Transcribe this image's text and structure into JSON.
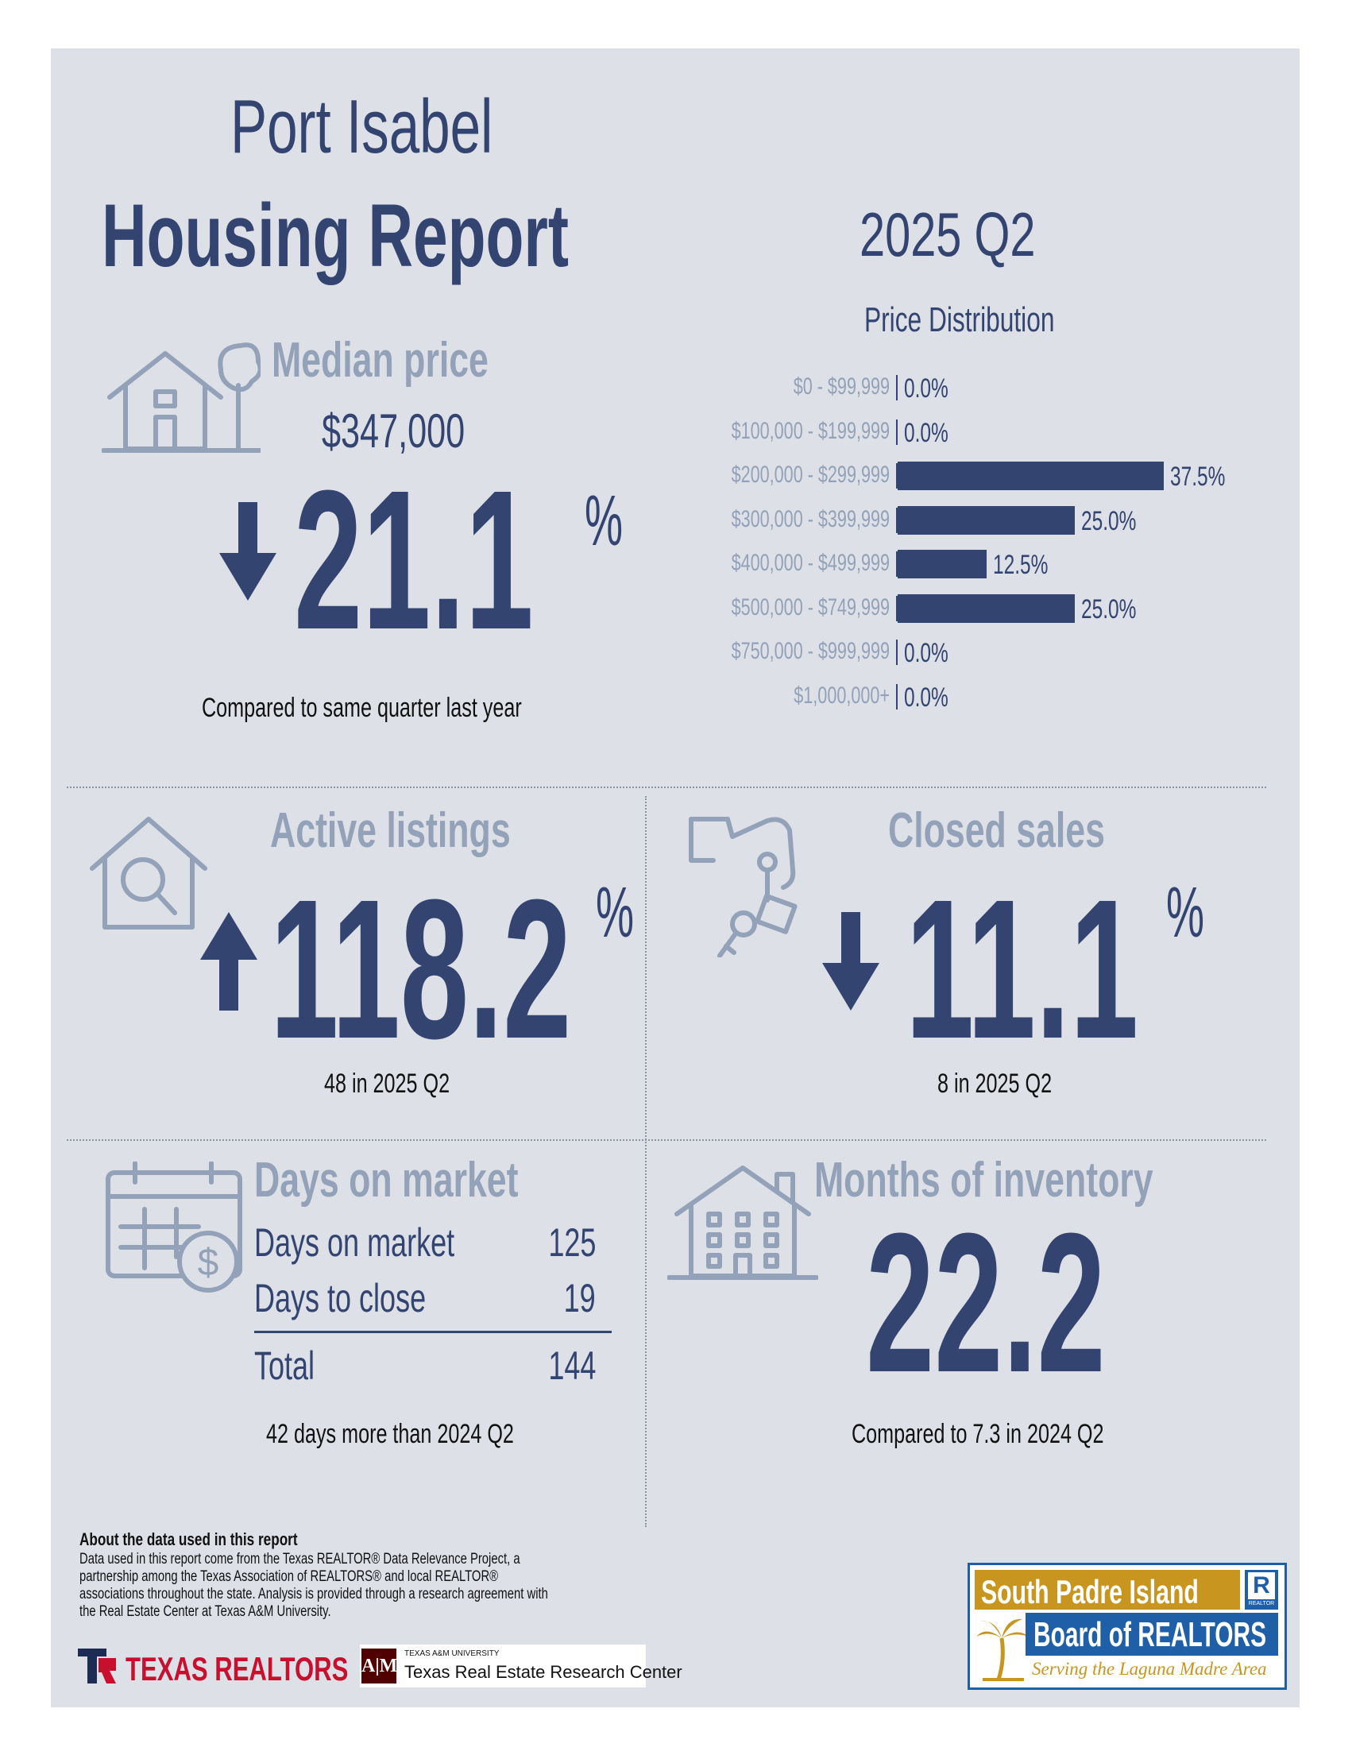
{
  "header": {
    "title_line1": "Port Isabel",
    "title_line2": "Housing Report",
    "period": "2025 Q2"
  },
  "median_price": {
    "heading": "Median price",
    "value": "$347,000",
    "change": "21.1",
    "pct_symbol": "%",
    "direction": "down",
    "note": "Compared to same quarter last year"
  },
  "price_distribution": {
    "title": "Price Distribution",
    "chart_data": {
      "type": "bar",
      "orientation": "horizontal",
      "categories": [
        "$0 - $99,999",
        "$100,000 - $199,999",
        "$200,000 - $299,999",
        "$300,000 - $399,999",
        "$400,000 - $499,999",
        "$500,000 - $749,999",
        "$750,000 - $999,999",
        "$1,000,000+"
      ],
      "values": [
        0.0,
        0.0,
        37.5,
        25.0,
        12.5,
        25.0,
        0.0,
        0.0
      ],
      "labels": [
        "0.0%",
        "0.0%",
        "37.5%",
        "25.0%",
        "12.5%",
        "25.0%",
        "0.0%",
        "0.0%"
      ],
      "title": "Price Distribution",
      "bar_color": "#344470"
    }
  },
  "active_listings": {
    "heading": "Active listings",
    "change": "118.2",
    "pct_symbol": "%",
    "direction": "up",
    "note": "48 in 2025 Q2"
  },
  "closed_sales": {
    "heading": "Closed sales",
    "change": "11.1",
    "pct_symbol": "%",
    "direction": "down",
    "note": "8 in 2025 Q2"
  },
  "days_on_market": {
    "heading": "Days on market",
    "rows": [
      {
        "label": "Days on market",
        "value": "125"
      },
      {
        "label": "Days to close",
        "value": "19"
      }
    ],
    "total_label": "Total",
    "total_value": "144",
    "note": "42 days more than 2024 Q2"
  },
  "months_inventory": {
    "heading": "Months of inventory",
    "value": "22.2",
    "note": "Compared to 7.3 in 2024 Q2"
  },
  "footer": {
    "about_heading": "About the data used in this report",
    "about_text": "Data used in this report come from the Texas REALTOR® Data Relevance Project, a partnership among the Texas Association of REALTORS® and local REALTOR® associations throughout the state. Analysis is provided through a research agreement with the Real Estate Center at Texas A&M University.",
    "texas_realtors": "TEXAS REALTORS",
    "tamu_small": "TEXAS A&M UNIVERSITY",
    "tamu_center": "Texas Real Estate Research Center",
    "spi_line1": "South Padre Island",
    "spi_line2": "Board of REALTORS",
    "spi_tagline": "Serving the Laguna Madre Area",
    "realtor_mark": "REALTOR",
    "colors": {
      "gold": "#c8961e",
      "blue": "#1f5fa8",
      "red": "#c8102e",
      "maroon": "#500000"
    }
  }
}
